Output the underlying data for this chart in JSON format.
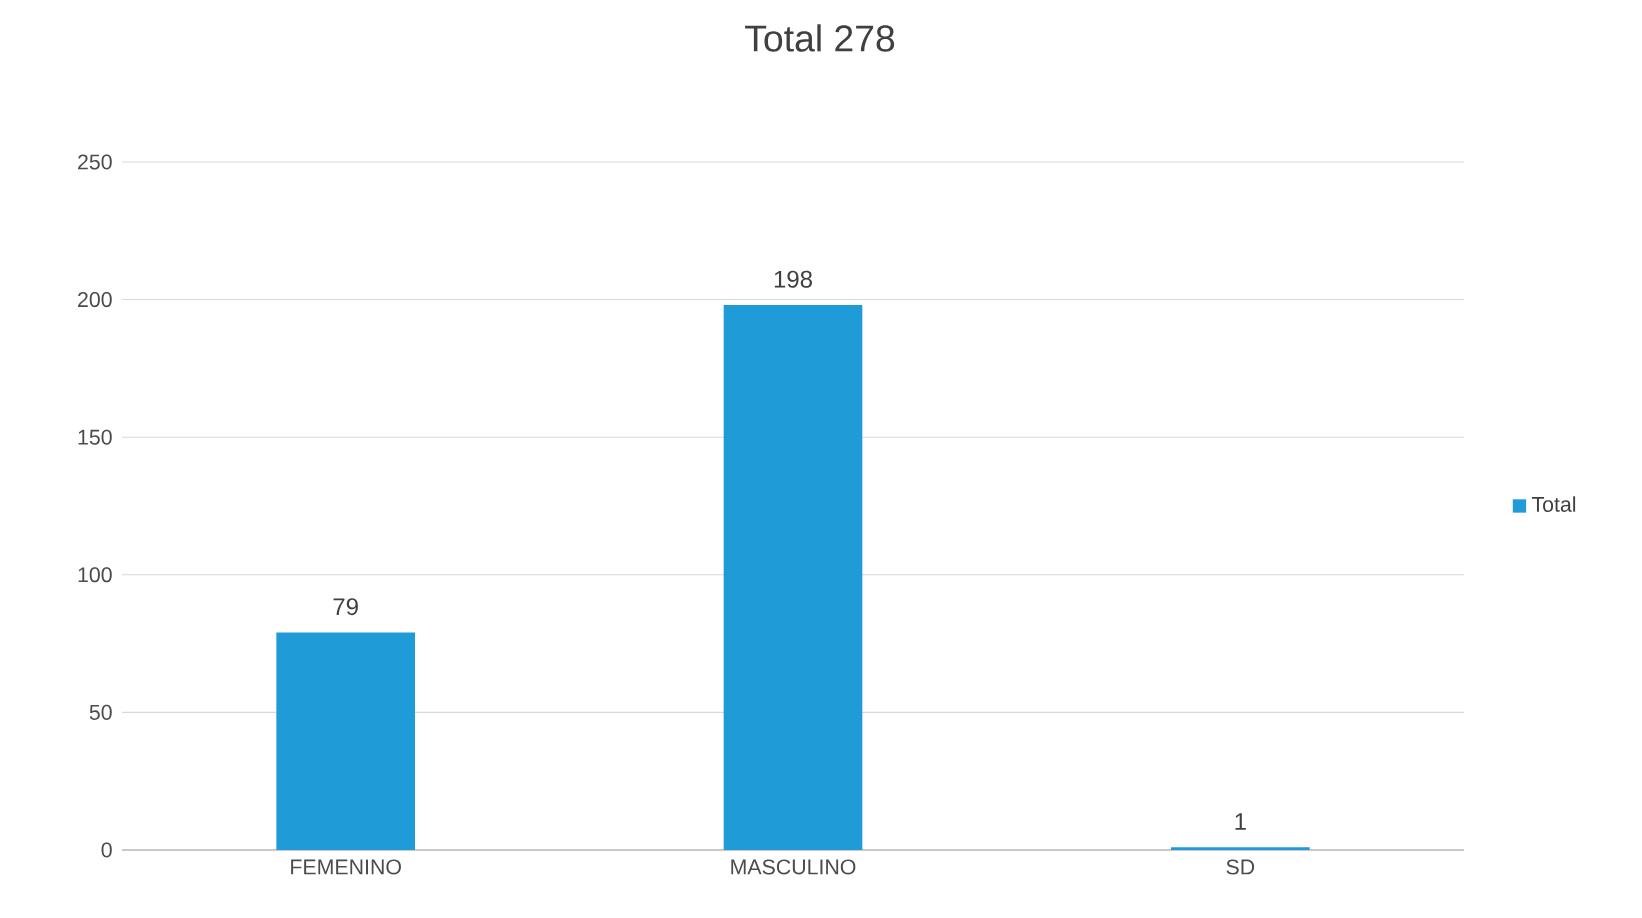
{
  "chart_data": {
    "type": "bar",
    "title": "Total 278",
    "categories": [
      "FEMENINO",
      "MASCULINO",
      "SD"
    ],
    "series": [
      {
        "name": "Total",
        "color": "#1f9bd8",
        "values": [
          79,
          198,
          1
        ]
      }
    ],
    "ylim": [
      0,
      250
    ],
    "yticks": [
      0,
      50,
      100,
      150,
      200,
      250
    ],
    "grid": "y",
    "legend": "right",
    "data_labels": true
  }
}
